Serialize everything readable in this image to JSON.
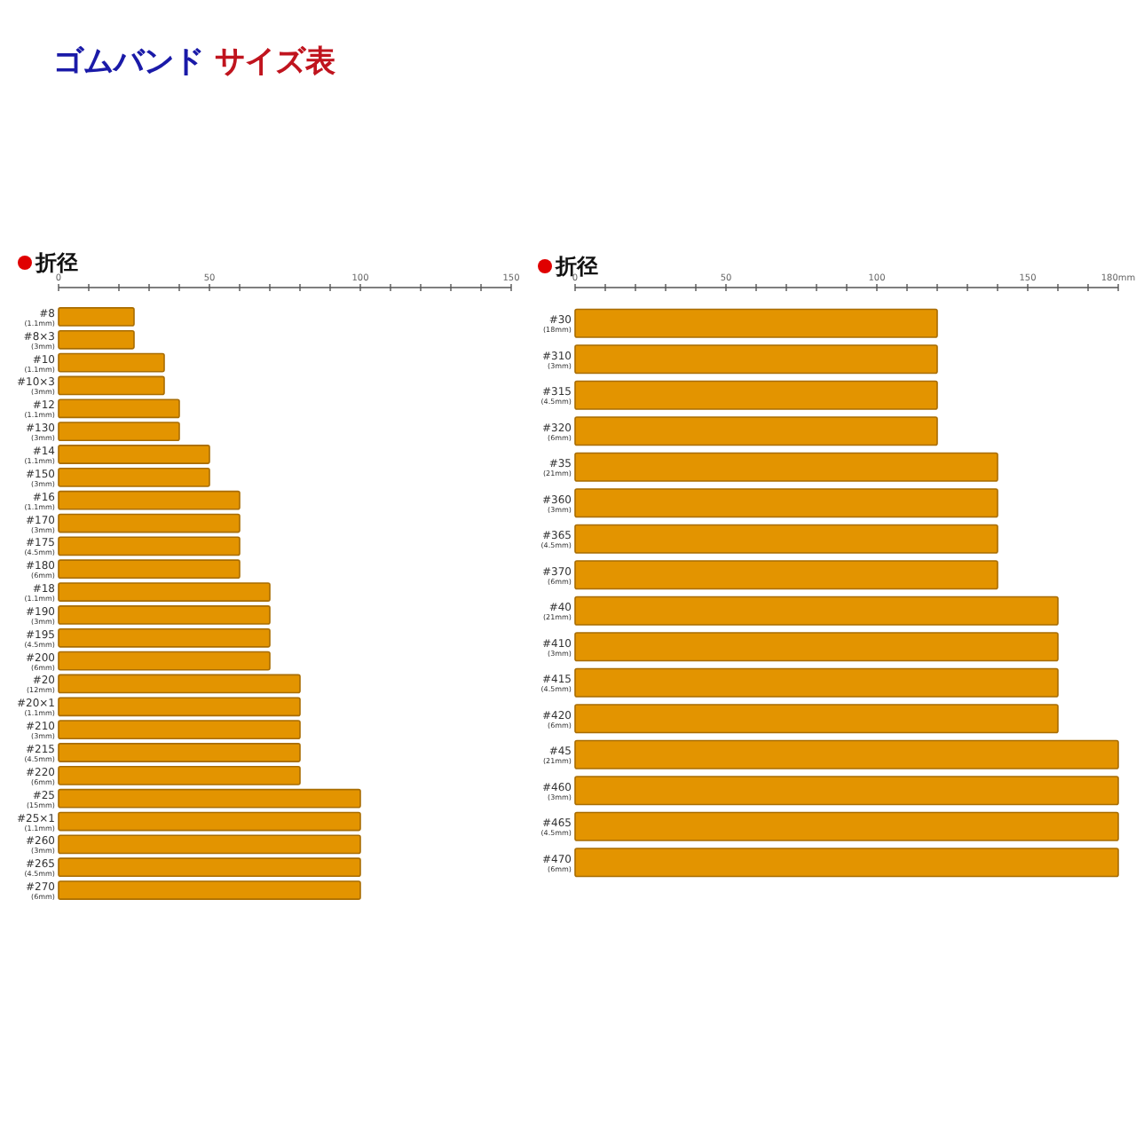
{
  "chart_data": [
    {
      "type": "bar",
      "orientation": "horizontal",
      "title": "ゴムバンド サイズ表",
      "subtitle": "折径",
      "categories": [
        "#8\n(1.1mm)",
        "#8×3\n(3mm)",
        "#10\n(1.1mm)",
        "#10×3\n(3mm)",
        "#12\n(1.1mm)",
        "#130\n(3mm)",
        "#14\n(1.1mm)",
        "#150\n(3mm)",
        "#16\n(1.1mm)",
        "#170\n(3mm)",
        "#175\n(4.5mm)",
        "#180\n(6mm)",
        "#18\n(1.1mm)",
        "#190\n(3mm)",
        "#195\n(4.5mm)",
        "#200\n(6mm)",
        "#20\n(12mm)",
        "#20×1\n(1.1mm)",
        "#210\n(3mm)",
        "#215\n(4.5mm)",
        "#220\n(6mm)",
        "#25\n(15mm)",
        "#25×1\n(1.1mm)",
        "#260\n(3mm)",
        "#265\n(4.5mm)",
        "#270\n(6mm)"
      ],
      "values": [
        25,
        25,
        35,
        35,
        40,
        40,
        50,
        50,
        60,
        60,
        60,
        60,
        70,
        70,
        70,
        70,
        80,
        80,
        80,
        80,
        80,
        100,
        100,
        100,
        100,
        100
      ],
      "color": "#e39400",
      "xlim": [
        0,
        150
      ],
      "xticks": [
        0,
        {
          "value": 10,
          "label": null
        },
        {
          "value": 20,
          "label": null
        },
        {
          "value": 30,
          "label": null
        },
        {
          "value": 40,
          "label": null
        },
        50,
        {
          "value": 60,
          "label": null
        },
        {
          "value": 70,
          "label": null
        },
        {
          "value": 80,
          "label": null
        },
        {
          "value": 90,
          "label": null
        },
        100,
        {
          "value": 110,
          "label": null
        },
        {
          "value": 120,
          "label": null
        },
        {
          "value": 130,
          "label": null
        },
        {
          "value": 140,
          "label": null
        },
        150
      ]
    },
    {
      "type": "bar",
      "orientation": "horizontal",
      "subtitle": "折径",
      "categories": [
        "#30\n(18mm)",
        "#310\n(3mm)",
        "#315\n(4.5mm)",
        "#320\n(6mm)",
        "#35\n(21mm)",
        "#360\n(3mm)",
        "#365\n(4.5mm)",
        "#370\n(6mm)",
        "#40\n(21mm)",
        "#410\n(3mm)",
        "#415\n(4.5mm)",
        "#420\n(6mm)",
        "#45\n(21mm)",
        "#460\n(3mm)",
        "#465\n(4.5mm)",
        "#470\n(6mm)"
      ],
      "values": [
        120,
        120,
        120,
        120,
        140,
        140,
        140,
        140,
        160,
        160,
        160,
        160,
        180,
        180,
        180,
        180
      ],
      "color": "#e39400",
      "xlim": [
        0,
        180
      ],
      "xticks": [
        0,
        {
          "value": 10,
          "label": null
        },
        {
          "value": 20,
          "label": null
        },
        {
          "value": 30,
          "label": null
        },
        {
          "value": 40,
          "label": null
        },
        50,
        {
          "value": 60,
          "label": null
        },
        {
          "value": 70,
          "label": null
        },
        {
          "value": 80,
          "label": null
        },
        {
          "value": 90,
          "label": null
        },
        100,
        {
          "value": 110,
          "label": null
        },
        {
          "value": 120,
          "label": null
        },
        {
          "value": 130,
          "label": null
        },
        {
          "value": 140,
          "label": null
        },
        150,
        {
          "value": 160,
          "label": null
        },
        {
          "value": 170,
          "label": null
        },
        {
          "value": 180,
          "label": "180mm"
        }
      ]
    }
  ]
}
